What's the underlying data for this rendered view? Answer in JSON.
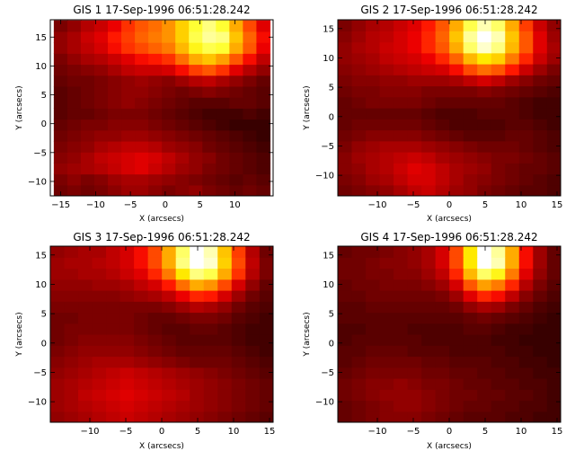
{
  "chart_data": [
    {
      "type": "heatmap",
      "title": "GIS 1 17-Sep-1996 06:51:28.242",
      "xlabel": "X (arcsecs)",
      "ylabel": "Y (arcsecs)",
      "xlim": [
        -16.5,
        15.5
      ],
      "ylim": [
        -12.5,
        18
      ],
      "xticks": [
        -15,
        -10,
        -5,
        0,
        5,
        10
      ],
      "yticks": [
        -10,
        -5,
        0,
        5,
        10,
        15
      ],
      "x0": -16,
      "y0": -12.5,
      "dx": 1.94,
      "dy": 1.9,
      "colormap": "heat (black-red-orange-white)",
      "values": [
        [
          20,
          22,
          20,
          22,
          25,
          28,
          28,
          25,
          22,
          24,
          26,
          22,
          20,
          18,
          20,
          18
        ],
        [
          22,
          25,
          22,
          24,
          28,
          30,
          30,
          28,
          26,
          24,
          22,
          20,
          18,
          16,
          18,
          16
        ],
        [
          26,
          28,
          30,
          32,
          35,
          38,
          40,
          36,
          32,
          28,
          26,
          22,
          20,
          18,
          16,
          14
        ],
        [
          24,
          26,
          30,
          34,
          36,
          38,
          40,
          38,
          34,
          30,
          26,
          24,
          20,
          18,
          16,
          14
        ],
        [
          22,
          24,
          26,
          30,
          32,
          34,
          34,
          32,
          28,
          26,
          24,
          20,
          18,
          16,
          14,
          12
        ],
        [
          20,
          22,
          24,
          26,
          26,
          28,
          28,
          26,
          24,
          22,
          20,
          18,
          16,
          14,
          12,
          10
        ],
        [
          18,
          20,
          22,
          22,
          24,
          24,
          24,
          22,
          20,
          18,
          16,
          14,
          12,
          10,
          10,
          10
        ],
        [
          16,
          18,
          18,
          20,
          22,
          22,
          22,
          20,
          18,
          16,
          14,
          12,
          12,
          12,
          14,
          12
        ],
        [
          16,
          18,
          20,
          22,
          24,
          26,
          24,
          22,
          20,
          18,
          16,
          16,
          16,
          18,
          18,
          16
        ],
        [
          16,
          18,
          20,
          22,
          24,
          26,
          26,
          24,
          22,
          20,
          22,
          24,
          22,
          20,
          18,
          16
        ],
        [
          18,
          20,
          20,
          22,
          24,
          26,
          28,
          26,
          24,
          28,
          32,
          34,
          30,
          26,
          22,
          18
        ],
        [
          20,
          22,
          24,
          26,
          30,
          34,
          36,
          36,
          38,
          44,
          52,
          56,
          50,
          40,
          32,
          26
        ],
        [
          22,
          26,
          30,
          32,
          36,
          40,
          44,
          46,
          50,
          60,
          70,
          74,
          68,
          56,
          44,
          34
        ],
        [
          26,
          30,
          34,
          38,
          44,
          50,
          54,
          58,
          62,
          72,
          82,
          86,
          84,
          70,
          56,
          42
        ],
        [
          26,
          30,
          36,
          40,
          46,
          52,
          58,
          62,
          66,
          76,
          86,
          92,
          90,
          74,
          58,
          44
        ],
        [
          22,
          26,
          32,
          36,
          42,
          50,
          56,
          60,
          66,
          76,
          84,
          90,
          84,
          70,
          54,
          40
        ]
      ]
    },
    {
      "type": "heatmap",
      "title": "GIS 2 17-Sep-1996 06:51:28.242",
      "xlabel": "X (arcsecs)",
      "ylabel": "Y (arcsecs)",
      "xlim": [
        -15.5,
        15.5
      ],
      "ylim": [
        -13.5,
        16.5
      ],
      "xticks": [
        -10,
        -5,
        0,
        5,
        10,
        15
      ],
      "yticks": [
        -10,
        -5,
        0,
        5,
        10,
        15
      ],
      "x0": -15.5,
      "y0": -13.5,
      "dx": 1.94,
      "dy": 1.875,
      "colormap": "heat (black-red-orange-white)",
      "values": [
        [
          20,
          22,
          24,
          26,
          30,
          34,
          36,
          32,
          28,
          26,
          22,
          20,
          18,
          16,
          16,
          14
        ],
        [
          22,
          24,
          28,
          30,
          34,
          38,
          38,
          34,
          30,
          26,
          24,
          22,
          20,
          18,
          16,
          14
        ],
        [
          24,
          26,
          30,
          32,
          36,
          40,
          38,
          34,
          30,
          28,
          26,
          22,
          20,
          18,
          18,
          16
        ],
        [
          24,
          28,
          30,
          32,
          34,
          36,
          34,
          30,
          28,
          26,
          24,
          22,
          22,
          20,
          18,
          16
        ],
        [
          22,
          26,
          28,
          30,
          30,
          30,
          28,
          26,
          24,
          22,
          20,
          20,
          20,
          18,
          16,
          14
        ],
        [
          20,
          22,
          24,
          24,
          24,
          24,
          22,
          20,
          18,
          16,
          16,
          16,
          18,
          18,
          16,
          14
        ],
        [
          18,
          20,
          20,
          20,
          20,
          20,
          18,
          16,
          14,
          14,
          14,
          14,
          16,
          16,
          14,
          12
        ],
        [
          18,
          18,
          18,
          18,
          18,
          18,
          16,
          14,
          14,
          14,
          16,
          16,
          16,
          14,
          12,
          12
        ],
        [
          18,
          20,
          22,
          22,
          22,
          22,
          20,
          18,
          18,
          18,
          18,
          18,
          16,
          14,
          12,
          12
        ],
        [
          20,
          22,
          22,
          24,
          24,
          24,
          22,
          22,
          22,
          22,
          24,
          22,
          20,
          18,
          16,
          14
        ],
        [
          22,
          24,
          24,
          26,
          26,
          28,
          28,
          28,
          30,
          34,
          38,
          34,
          28,
          24,
          20,
          18
        ],
        [
          24,
          26,
          28,
          30,
          32,
          34,
          36,
          38,
          44,
          54,
          60,
          56,
          46,
          36,
          28,
          22
        ],
        [
          26,
          28,
          30,
          34,
          36,
          38,
          42,
          48,
          58,
          72,
          80,
          76,
          62,
          48,
          36,
          28
        ],
        [
          26,
          30,
          32,
          36,
          38,
          42,
          48,
          56,
          70,
          88,
          96,
          90,
          72,
          56,
          40,
          30
        ],
        [
          24,
          28,
          32,
          34,
          38,
          42,
          48,
          58,
          74,
          92,
          100,
          94,
          74,
          56,
          40,
          28
        ],
        [
          22,
          26,
          30,
          32,
          36,
          40,
          46,
          56,
          70,
          86,
          94,
          88,
          70,
          52,
          36,
          26
        ]
      ]
    },
    {
      "type": "heatmap",
      "title": "GIS 3 17-Sep-1996 06:51:28.242",
      "xlabel": "X (arcsecs)",
      "ylabel": "Y (arcsecs)",
      "xlim": [
        -15.5,
        15.5
      ],
      "ylim": [
        -13.5,
        16.5
      ],
      "xticks": [
        -10,
        -5,
        0,
        5,
        10,
        15
      ],
      "yticks": [
        -10,
        -5,
        0,
        5,
        10,
        15
      ],
      "x0": -15.5,
      "y0": -13.5,
      "dx": 1.94,
      "dy": 1.875,
      "colormap": "heat (black-red-orange-white)",
      "values": [
        [
          26,
          28,
          30,
          32,
          34,
          36,
          34,
          32,
          30,
          28,
          26,
          24,
          22,
          20,
          18,
          16
        ],
        [
          28,
          30,
          32,
          34,
          36,
          38,
          36,
          34,
          32,
          30,
          28,
          26,
          24,
          22,
          20,
          18
        ],
        [
          28,
          30,
          34,
          36,
          38,
          40,
          38,
          36,
          34,
          32,
          28,
          26,
          24,
          22,
          20,
          18
        ],
        [
          28,
          30,
          32,
          34,
          36,
          38,
          36,
          34,
          32,
          30,
          28,
          26,
          24,
          22,
          20,
          18
        ],
        [
          26,
          28,
          30,
          32,
          34,
          36,
          34,
          32,
          30,
          28,
          26,
          24,
          22,
          20,
          18,
          16
        ],
        [
          24,
          26,
          28,
          30,
          30,
          30,
          28,
          26,
          24,
          22,
          20,
          20,
          20,
          18,
          16,
          14
        ],
        [
          22,
          24,
          26,
          26,
          26,
          26,
          24,
          22,
          20,
          18,
          18,
          18,
          18,
          16,
          14,
          12
        ],
        [
          20,
          22,
          24,
          24,
          24,
          24,
          22,
          20,
          18,
          16,
          16,
          16,
          16,
          14,
          12,
          12
        ],
        [
          20,
          22,
          22,
          22,
          22,
          22,
          20,
          18,
          16,
          16,
          18,
          18,
          16,
          14,
          12,
          12
        ],
        [
          20,
          20,
          22,
          22,
          22,
          22,
          20,
          18,
          18,
          20,
          22,
          22,
          20,
          16,
          14,
          12
        ],
        [
          22,
          22,
          22,
          22,
          22,
          22,
          22,
          22,
          24,
          28,
          32,
          30,
          26,
          20,
          16,
          14
        ],
        [
          24,
          24,
          24,
          24,
          24,
          26,
          28,
          30,
          34,
          42,
          48,
          46,
          38,
          28,
          20,
          16
        ],
        [
          26,
          26,
          26,
          28,
          28,
          30,
          34,
          38,
          46,
          60,
          70,
          66,
          54,
          38,
          26,
          18
        ],
        [
          28,
          28,
          30,
          30,
          32,
          36,
          40,
          48,
          62,
          80,
          90,
          86,
          70,
          50,
          32,
          22
        ],
        [
          28,
          30,
          30,
          32,
          34,
          38,
          44,
          54,
          70,
          90,
          100,
          96,
          76,
          54,
          34,
          22
        ],
        [
          26,
          28,
          30,
          30,
          34,
          38,
          44,
          54,
          70,
          88,
          100,
          94,
          74,
          52,
          32,
          20
        ]
      ]
    },
    {
      "type": "heatmap",
      "title": "GIS 4 17-Sep-1996 06:51:28.242",
      "xlabel": "X (arcsecs)",
      "ylabel": "Y (arcsecs)",
      "xlim": [
        -15.5,
        15.5
      ],
      "ylim": [
        -13.5,
        16.5
      ],
      "xticks": [
        -10,
        -5,
        0,
        5,
        10,
        15
      ],
      "yticks": [
        -10,
        -5,
        0,
        5,
        10,
        15
      ],
      "x0": -15.5,
      "y0": -13.5,
      "dx": 1.94,
      "dy": 1.875,
      "colormap": "heat (black-red-orange-white)",
      "values": [
        [
          18,
          20,
          22,
          24,
          24,
          24,
          22,
          20,
          18,
          16,
          16,
          16,
          14,
          14,
          12,
          12
        ],
        [
          18,
          20,
          22,
          24,
          26,
          26,
          24,
          22,
          20,
          18,
          18,
          16,
          16,
          14,
          14,
          12
        ],
        [
          20,
          22,
          24,
          26,
          26,
          26,
          24,
          22,
          20,
          20,
          18,
          18,
          16,
          16,
          14,
          12
        ],
        [
          20,
          22,
          24,
          24,
          26,
          24,
          22,
          22,
          20,
          18,
          18,
          16,
          16,
          14,
          14,
          12
        ],
        [
          18,
          20,
          22,
          22,
          22,
          22,
          20,
          20,
          18,
          18,
          16,
          16,
          14,
          14,
          12,
          12
        ],
        [
          16,
          18,
          20,
          20,
          20,
          20,
          18,
          18,
          16,
          16,
          16,
          14,
          14,
          12,
          12,
          10
        ],
        [
          16,
          16,
          18,
          18,
          18,
          16,
          16,
          16,
          14,
          14,
          14,
          14,
          12,
          12,
          10,
          10
        ],
        [
          14,
          16,
          16,
          16,
          16,
          16,
          14,
          14,
          14,
          14,
          14,
          12,
          12,
          10,
          10,
          10
        ],
        [
          14,
          14,
          16,
          16,
          16,
          14,
          14,
          14,
          14,
          16,
          16,
          14,
          12,
          12,
          10,
          10
        ],
        [
          16,
          16,
          16,
          16,
          16,
          16,
          16,
          16,
          16,
          18,
          20,
          18,
          16,
          14,
          12,
          10
        ],
        [
          16,
          16,
          18,
          18,
          18,
          18,
          18,
          18,
          20,
          26,
          30,
          28,
          22,
          18,
          14,
          12
        ],
        [
          18,
          18,
          20,
          20,
          20,
          20,
          20,
          22,
          28,
          40,
          48,
          44,
          34,
          24,
          18,
          14
        ],
        [
          18,
          20,
          20,
          22,
          22,
          22,
          24,
          28,
          38,
          56,
          68,
          62,
          48,
          32,
          22,
          16
        ],
        [
          20,
          20,
          22,
          22,
          24,
          24,
          28,
          34,
          48,
          72,
          88,
          82,
          62,
          40,
          26,
          18
        ],
        [
          20,
          20,
          22,
          24,
          24,
          26,
          30,
          38,
          54,
          80,
          100,
          94,
          70,
          44,
          28,
          18
        ],
        [
          18,
          20,
          20,
          22,
          24,
          26,
          30,
          38,
          54,
          80,
          100,
          92,
          70,
          44,
          28,
          18
        ]
      ]
    }
  ]
}
